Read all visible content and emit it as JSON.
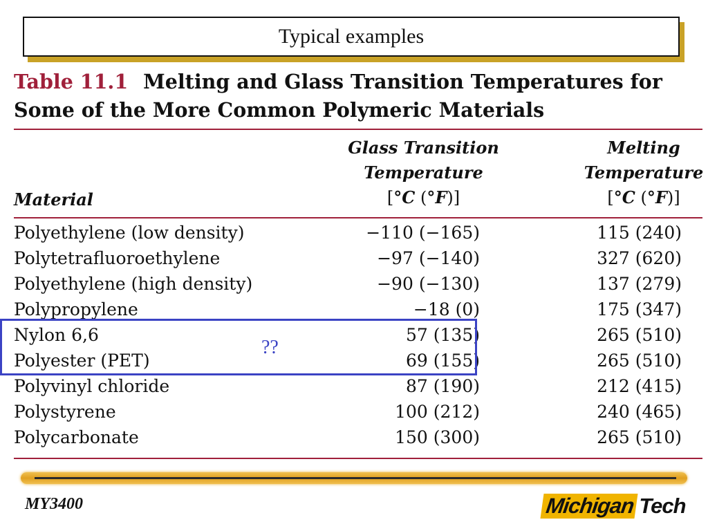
{
  "slide": {
    "title": "Typical examples"
  },
  "table": {
    "number": "Table 11.1",
    "caption_line1": "Melting and Glass Transition Temperatures for",
    "caption_line2": "Some of the More Common Polymeric Materials",
    "headers": {
      "material": "Material",
      "glass_l1": "Glass Transition",
      "glass_l2": "Temperature",
      "melt_l1": "Melting",
      "melt_l2": "Temperature",
      "unit_c": "°C",
      "unit_f": "°F"
    },
    "rows": [
      {
        "material": "Polyethylene (low density)",
        "glass": "−110 (−165)",
        "melt": "115 (240)"
      },
      {
        "material": "Polytetrafluoroethylene",
        "glass": "−97 (−140)",
        "melt": "327 (620)"
      },
      {
        "material": "Polyethylene (high density)",
        "glass": "−90 (−130)",
        "melt": "137 (279)"
      },
      {
        "material": "Polypropylene",
        "glass": "−18 (0)",
        "melt": "175 (347)"
      },
      {
        "material": "Nylon 6,6",
        "glass": "57 (135)",
        "melt": "265 (510)"
      },
      {
        "material": "Polyester (PET)",
        "glass": "69 (155)",
        "melt": "265 (510)"
      },
      {
        "material": "Polyvinyl chloride",
        "glass": "87 (190)",
        "melt": "212 (415)"
      },
      {
        "material": "Polystyrene",
        "glass": "100 (212)",
        "melt": "240 (465)"
      },
      {
        "material": "Polycarbonate",
        "glass": "150 (300)",
        "melt": "265 (510)"
      }
    ]
  },
  "annotation": {
    "text": "??"
  },
  "footer": {
    "course": "MY3400",
    "logo_part1": "Michigan",
    "logo_part2": "Tech"
  },
  "colors": {
    "table_accent": "#a0203a",
    "highlight_box": "#3b43c4",
    "gold": "#e0a020"
  }
}
